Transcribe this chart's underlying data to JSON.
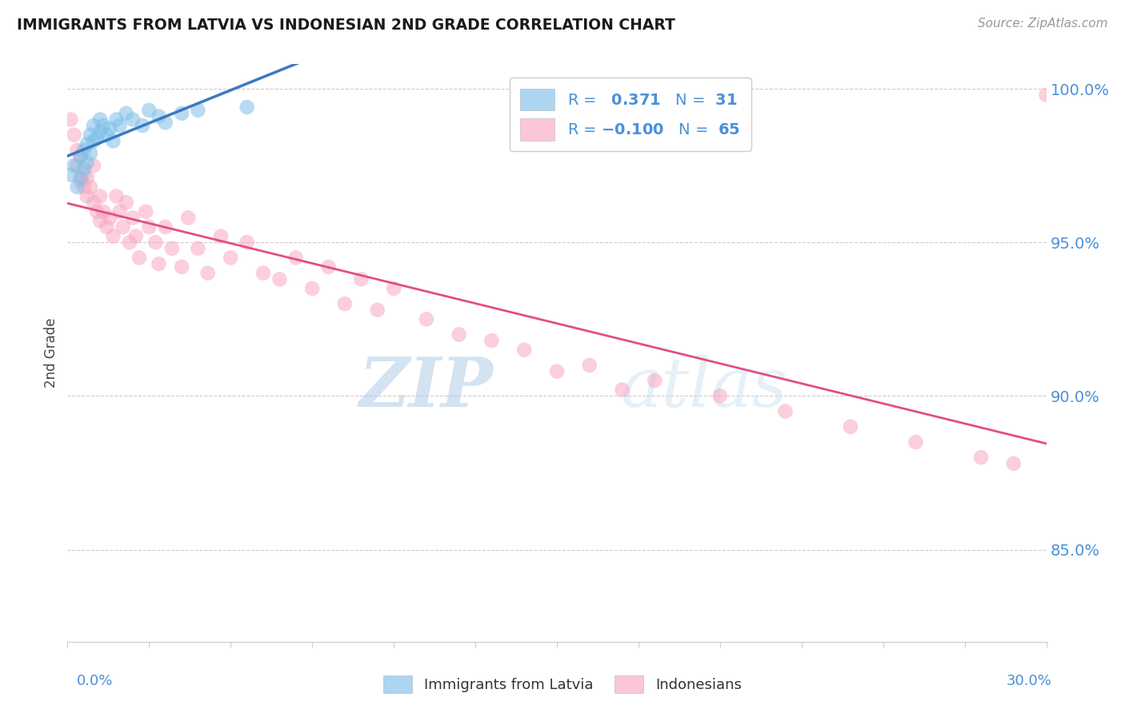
{
  "title": "IMMIGRANTS FROM LATVIA VS INDONESIAN 2ND GRADE CORRELATION CHART",
  "source": "Source: ZipAtlas.com",
  "ylabel": "2nd Grade",
  "xlim": [
    0.0,
    0.3
  ],
  "ylim": [
    0.82,
    1.008
  ],
  "yticks": [
    0.85,
    0.9,
    0.95,
    1.0
  ],
  "ytick_labels": [
    "85.0%",
    "90.0%",
    "95.0%",
    "100.0%"
  ],
  "blue_R": 0.371,
  "blue_N": 31,
  "pink_R": -0.1,
  "pink_N": 65,
  "blue_color": "#7fbfe8",
  "pink_color": "#f9a8c0",
  "trend_blue": "#3a7abf",
  "trend_pink": "#e05080",
  "blue_scatter_x": [
    0.001,
    0.002,
    0.003,
    0.004,
    0.004,
    0.005,
    0.005,
    0.006,
    0.006,
    0.007,
    0.007,
    0.008,
    0.008,
    0.009,
    0.01,
    0.01,
    0.011,
    0.012,
    0.013,
    0.014,
    0.015,
    0.016,
    0.018,
    0.02,
    0.023,
    0.025,
    0.028,
    0.03,
    0.035,
    0.04,
    0.055
  ],
  "blue_scatter_y": [
    0.972,
    0.975,
    0.968,
    0.971,
    0.978,
    0.98,
    0.974,
    0.982,
    0.976,
    0.985,
    0.979,
    0.988,
    0.983,
    0.984,
    0.986,
    0.99,
    0.988,
    0.985,
    0.987,
    0.983,
    0.99,
    0.988,
    0.992,
    0.99,
    0.988,
    0.993,
    0.991,
    0.989,
    0.992,
    0.993,
    0.994
  ],
  "pink_scatter_x": [
    0.001,
    0.002,
    0.003,
    0.003,
    0.004,
    0.004,
    0.005,
    0.005,
    0.006,
    0.006,
    0.007,
    0.008,
    0.008,
    0.009,
    0.01,
    0.01,
    0.011,
    0.012,
    0.013,
    0.014,
    0.015,
    0.016,
    0.017,
    0.018,
    0.019,
    0.02,
    0.021,
    0.022,
    0.024,
    0.025,
    0.027,
    0.028,
    0.03,
    0.032,
    0.035,
    0.037,
    0.04,
    0.043,
    0.047,
    0.05,
    0.055,
    0.06,
    0.065,
    0.07,
    0.075,
    0.08,
    0.085,
    0.09,
    0.095,
    0.1,
    0.11,
    0.12,
    0.14,
    0.16,
    0.18,
    0.2,
    0.22,
    0.24,
    0.26,
    0.28,
    0.13,
    0.15,
    0.17,
    0.29,
    0.3
  ],
  "pink_scatter_y": [
    0.99,
    0.985,
    0.98,
    0.975,
    0.978,
    0.97,
    0.972,
    0.968,
    0.965,
    0.971,
    0.968,
    0.975,
    0.963,
    0.96,
    0.965,
    0.957,
    0.96,
    0.955,
    0.958,
    0.952,
    0.965,
    0.96,
    0.955,
    0.963,
    0.95,
    0.958,
    0.952,
    0.945,
    0.96,
    0.955,
    0.95,
    0.943,
    0.955,
    0.948,
    0.942,
    0.958,
    0.948,
    0.94,
    0.952,
    0.945,
    0.95,
    0.94,
    0.938,
    0.945,
    0.935,
    0.942,
    0.93,
    0.938,
    0.928,
    0.935,
    0.925,
    0.92,
    0.915,
    0.91,
    0.905,
    0.9,
    0.895,
    0.89,
    0.885,
    0.88,
    0.918,
    0.908,
    0.902,
    0.878,
    0.998
  ],
  "watermark_zip": "ZIP",
  "watermark_atlas": "atlas",
  "background_color": "#ffffff",
  "grid_color": "#cccccc",
  "tick_color": "#4a90d9",
  "legend_label_blue": "Immigrants from Latvia",
  "legend_label_pink": "Indonesians"
}
